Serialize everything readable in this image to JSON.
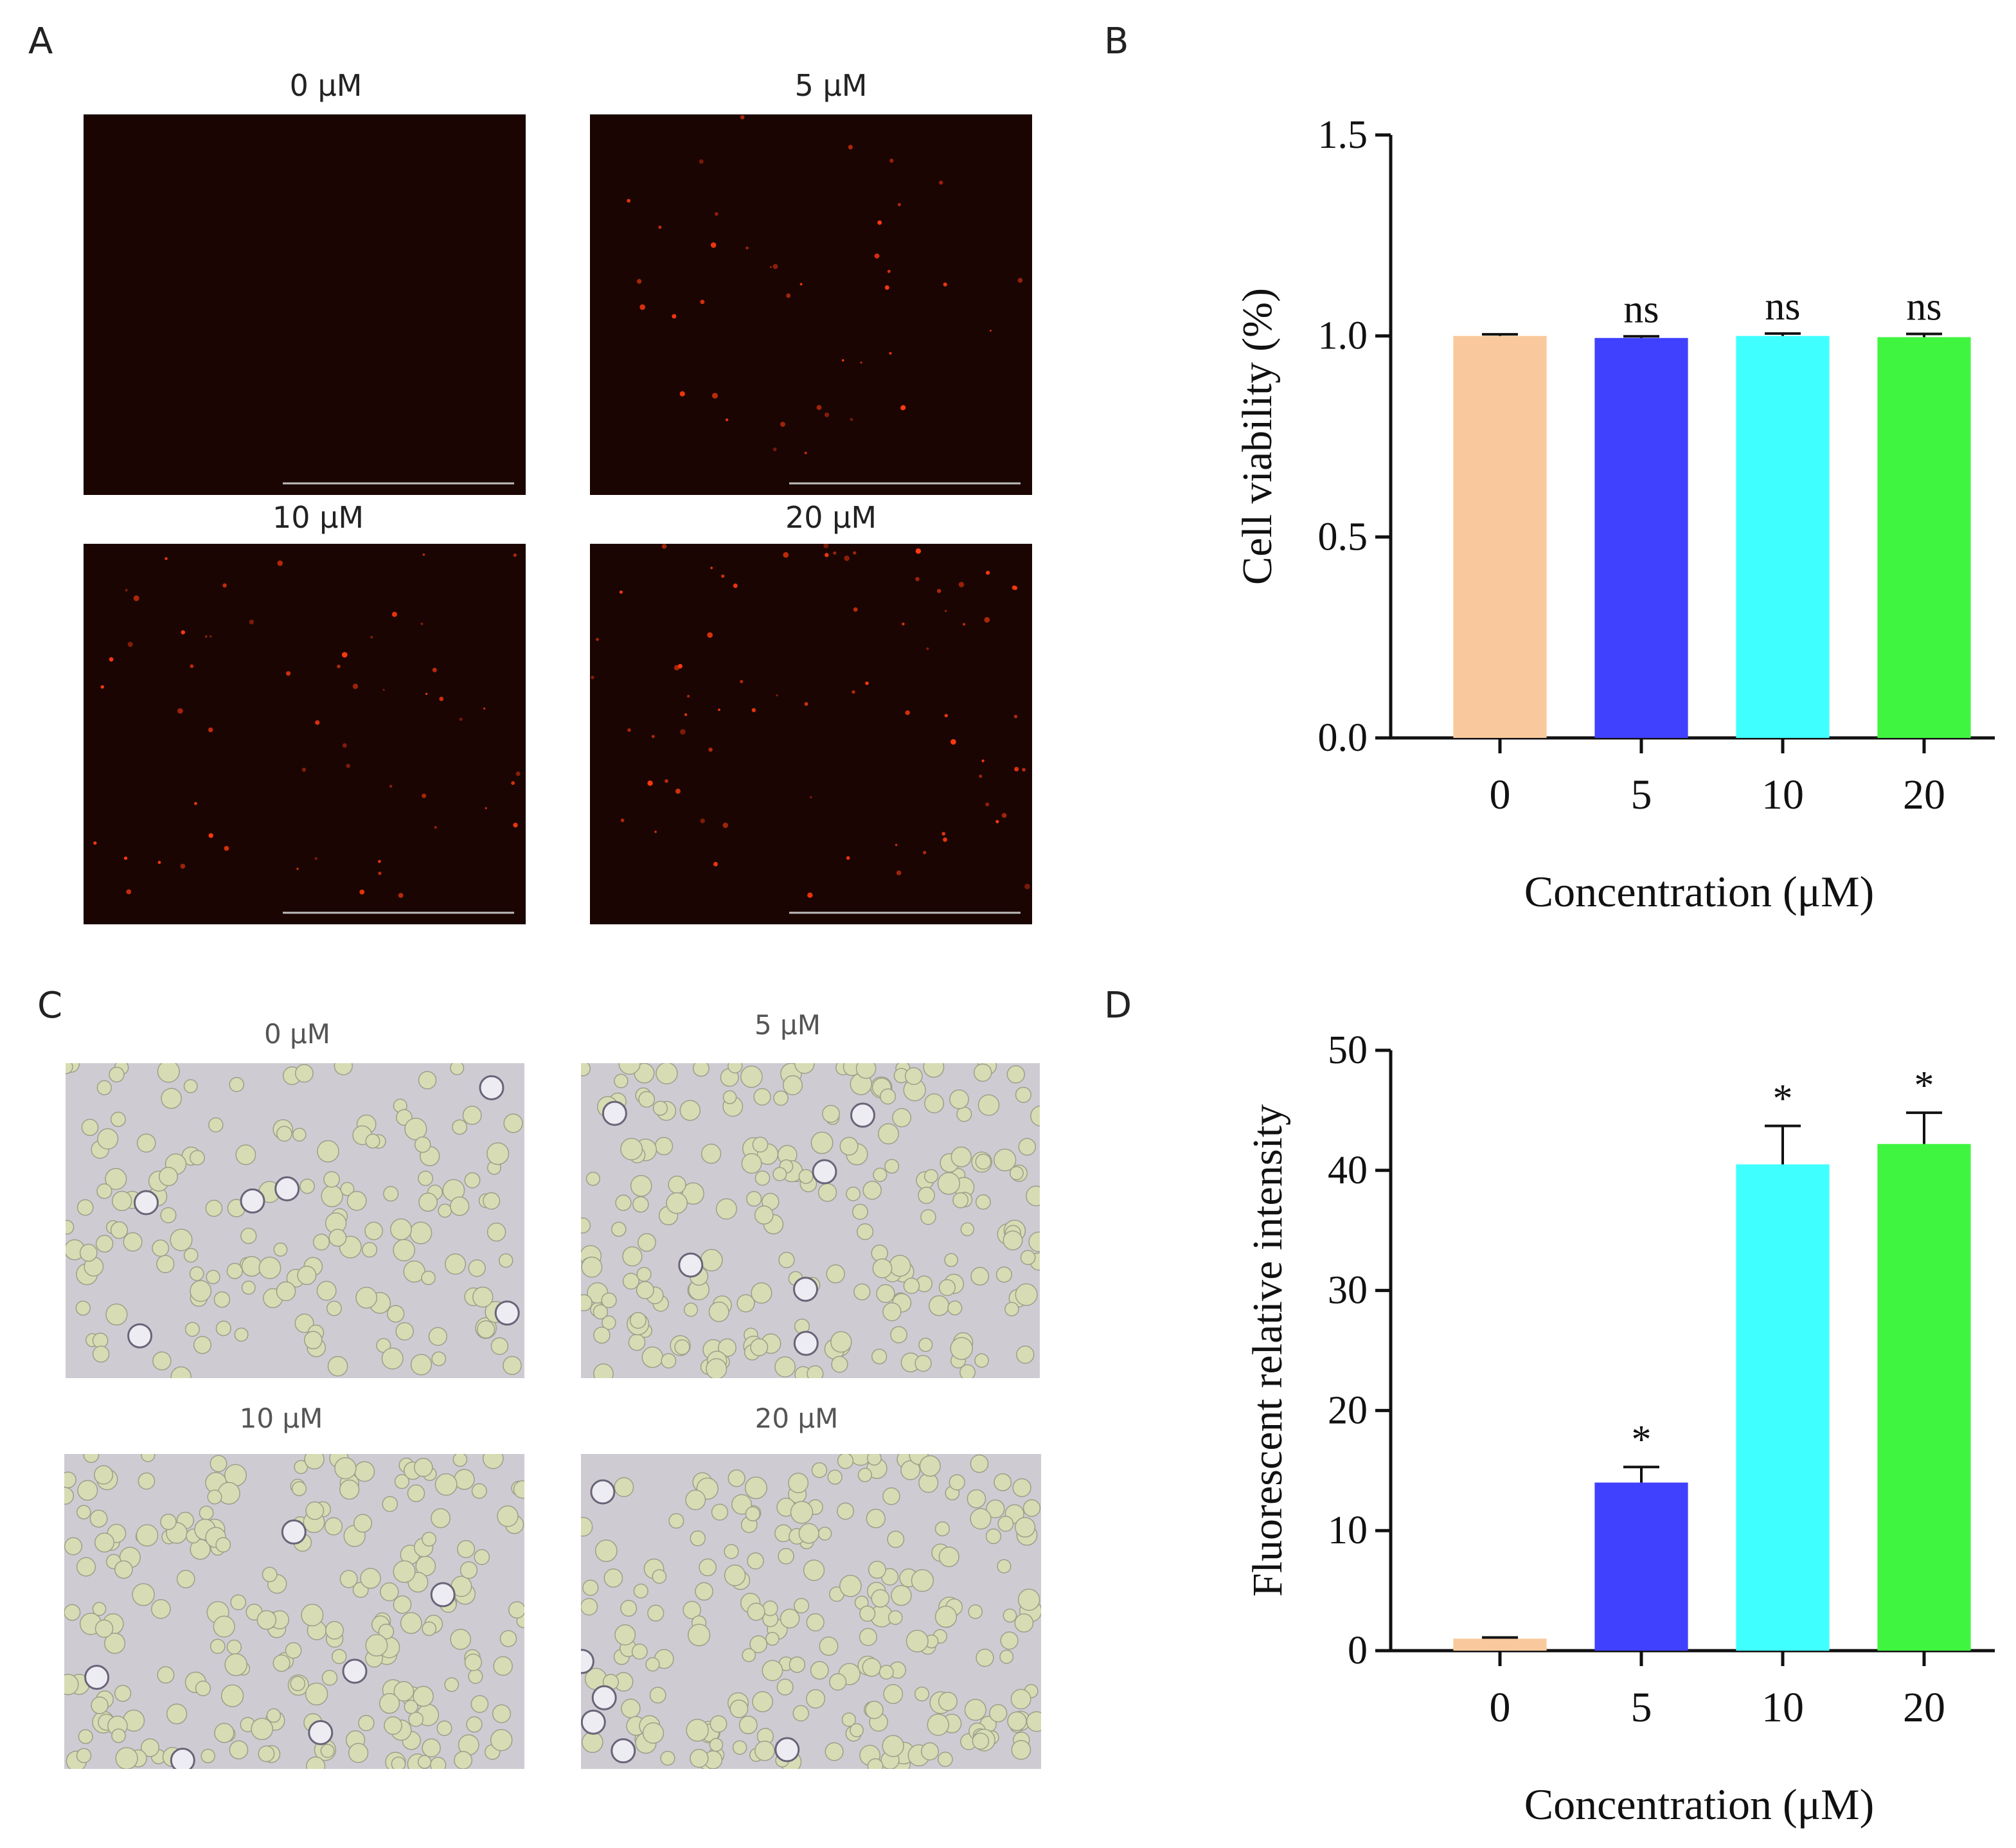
{
  "panels": {
    "A": {
      "letter": "A",
      "titles": [
        "0 μM",
        "5 μM",
        "10 μM",
        "20 μM"
      ],
      "dot_color": "#ff3a10",
      "bg_color": "#1a0502"
    },
    "C": {
      "letter": "C",
      "titles": [
        "0 μM",
        "5 μM",
        "10 μM",
        "20 μM"
      ],
      "cell_color": "#d8dcb4",
      "bg_color": "#cfcbd3"
    }
  },
  "chart_data": [
    {
      "panel": "B",
      "type": "bar",
      "categories": [
        "0",
        "5",
        "10",
        "20"
      ],
      "values": [
        1.0,
        0.995,
        1.0,
        0.997
      ],
      "errors": [
        0.004,
        0.004,
        0.006,
        0.008
      ],
      "annotations": [
        "",
        "ns",
        "ns",
        "ns"
      ],
      "colors": [
        "#f9c99d",
        "#4040ff",
        "#40ffff",
        "#40f540"
      ],
      "ylabel": "Cell viability (%)",
      "xlabel": "Concentration (μM)",
      "ylim": [
        0,
        1.5
      ],
      "yticks": [
        "0.0",
        "0.5",
        "1.0",
        "1.5"
      ],
      "ytick_values": [
        0,
        0.5,
        1.0,
        1.5
      ]
    },
    {
      "panel": "D",
      "type": "bar",
      "categories": [
        "0",
        "5",
        "10",
        "20"
      ],
      "values": [
        1.0,
        14.0,
        40.5,
        42.2
      ],
      "errors": [
        0.1,
        1.3,
        3.2,
        2.6
      ],
      "annotations": [
        "",
        "*",
        "*",
        "*"
      ],
      "colors": [
        "#f9c99d",
        "#4040ff",
        "#40ffff",
        "#40f540"
      ],
      "ylabel": "Fluorescent relative intensity",
      "xlabel": "Concentration (μM)",
      "ylim": [
        0,
        50
      ],
      "yticks": [
        "0",
        "10",
        "20",
        "30",
        "40",
        "50"
      ],
      "ytick_values": [
        0,
        10,
        20,
        30,
        40,
        50
      ]
    }
  ],
  "letters": {
    "B": "B",
    "D": "D"
  }
}
